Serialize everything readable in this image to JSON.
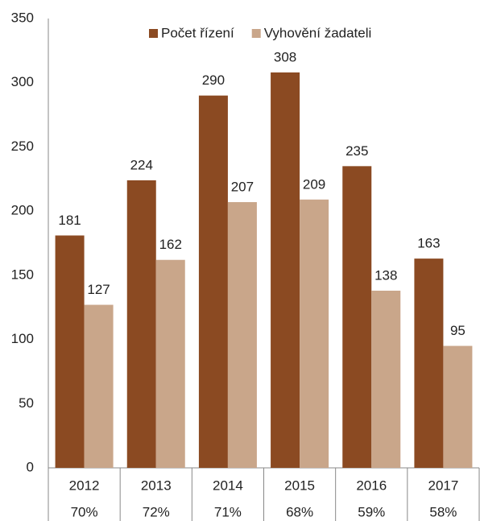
{
  "chart_data": {
    "type": "bar",
    "categories": [
      "2012",
      "2013",
      "2014",
      "2015",
      "2016",
      "2017"
    ],
    "category_notes": [
      "70%",
      "72%",
      "71%",
      "68%",
      "59%",
      "58%"
    ],
    "series": [
      {
        "name": "Počet řízení",
        "color": "#8b4a22",
        "values": [
          181,
          224,
          290,
          308,
          235,
          163
        ]
      },
      {
        "name": "Vyhovění žadateli",
        "color": "#c9a68a",
        "values": [
          127,
          162,
          207,
          209,
          138,
          95
        ]
      }
    ],
    "ylim": [
      0,
      350
    ],
    "yticks": [
      0,
      50,
      100,
      150,
      200,
      250,
      300,
      350
    ],
    "grid": false,
    "legend": "top"
  }
}
